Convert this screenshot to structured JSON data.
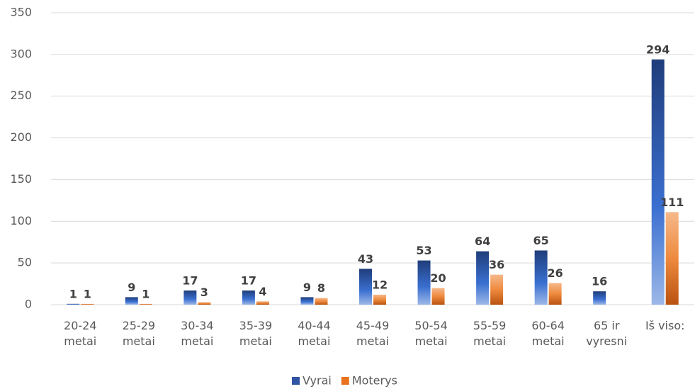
{
  "chart_data": {
    "type": "bar",
    "categories": [
      [
        "20-24",
        "metai"
      ],
      [
        "25-29",
        "metai"
      ],
      [
        "30-34",
        "metai"
      ],
      [
        "35-39",
        "metai"
      ],
      [
        "40-44",
        "metai"
      ],
      [
        "45-49",
        "metai"
      ],
      [
        "50-54",
        "metai"
      ],
      [
        "55-59",
        "metai"
      ],
      [
        "60-64",
        "metai"
      ],
      [
        "65 ir",
        "vyresni"
      ],
      [
        "Iš viso:"
      ]
    ],
    "series": [
      {
        "name": "Vyrai",
        "color": "#2f55a4",
        "values": [
          1,
          9,
          17,
          17,
          9,
          43,
          53,
          64,
          65,
          16,
          294
        ]
      },
      {
        "name": "Moterys",
        "color": "#e8731f",
        "values": [
          1,
          1,
          3,
          4,
          8,
          12,
          20,
          36,
          26,
          null,
          111
        ]
      }
    ],
    "ylim": [
      0,
      350
    ],
    "yticks": [
      0,
      50,
      100,
      150,
      200,
      250,
      300,
      350
    ],
    "grid": true,
    "legend": "bottom"
  }
}
